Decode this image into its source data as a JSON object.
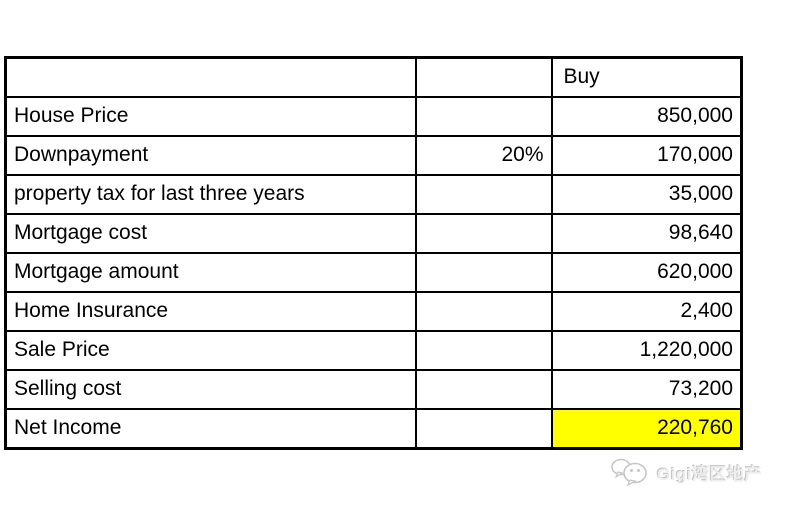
{
  "table": {
    "header": {
      "col1": "",
      "col2": "",
      "buy": "Buy"
    },
    "rows": [
      {
        "label": "House Price",
        "mid": "",
        "value": "850,000",
        "highlight": false
      },
      {
        "label": "Downpayment",
        "mid": "20%",
        "value": "170,000",
        "highlight": false
      },
      {
        "label": "property tax for last three years",
        "mid": "",
        "value": "35,000",
        "highlight": false
      },
      {
        "label": "Mortgage cost",
        "mid": "",
        "value": "98,640",
        "highlight": false
      },
      {
        "label": "Mortgage amount",
        "mid": "",
        "value": "620,000",
        "highlight": false
      },
      {
        "label": "Home Insurance",
        "mid": "",
        "value": "2,400",
        "highlight": false
      },
      {
        "label": "Sale Price",
        "mid": "",
        "value": "1,220,000",
        "highlight": false
      },
      {
        "label": "Selling cost",
        "mid": "",
        "value": "73,200",
        "highlight": false
      },
      {
        "label": "Net Income",
        "mid": "",
        "value": "220,760",
        "highlight": true
      }
    ]
  },
  "watermark": {
    "text": "Gigi湾区地产",
    "icon": "wechat-icon"
  },
  "colors": {
    "highlight": "#ffff00",
    "border": "#000000",
    "table_text": "#000000",
    "watermark_gray": "#c6c6c6",
    "background": "#ffffff"
  }
}
